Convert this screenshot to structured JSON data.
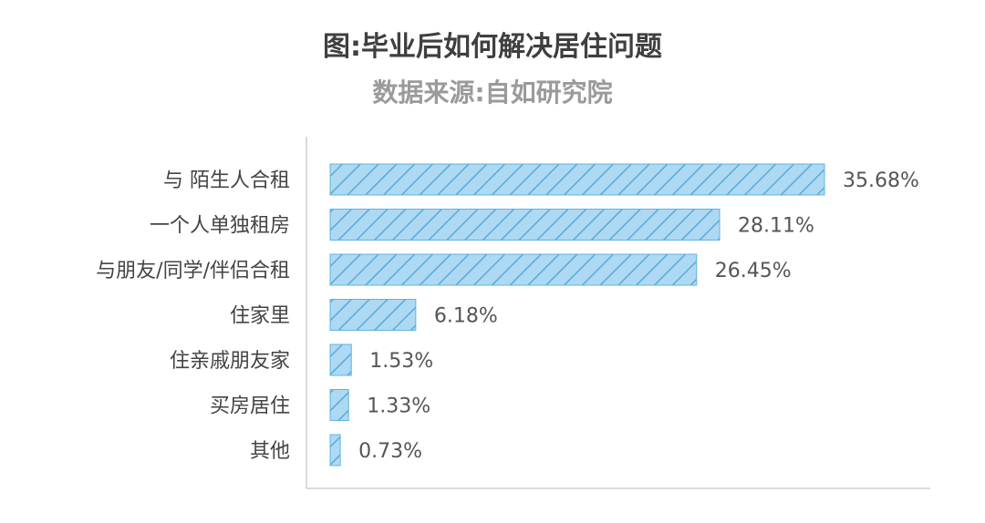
{
  "chart_data": {
    "type": "bar",
    "orientation": "horizontal",
    "title": "图:毕业后如何解决居住问题",
    "subtitle": "数据来源:自如研究院",
    "categories": [
      "与 陌生人合租",
      "一个人单独租房",
      "与朋友/同学/伴侣合租",
      "住家里",
      "住亲戚朋友家",
      "买房居住",
      "其他"
    ],
    "values": [
      35.68,
      28.11,
      26.45,
      6.18,
      1.53,
      1.33,
      0.73
    ],
    "value_labels": [
      "35.68%",
      "28.11%",
      "26.45%",
      "6.18%",
      "1.53%",
      "1.33%",
      "0.73%"
    ],
    "xlim": [
      0,
      38.84
    ],
    "grid": false,
    "legend": "none",
    "colors": {
      "bar_fill": "#aed9f2",
      "bar_stroke": "#5fb4e3",
      "hatch": "#5aa9d8",
      "axis": "#cfcfcf"
    }
  }
}
